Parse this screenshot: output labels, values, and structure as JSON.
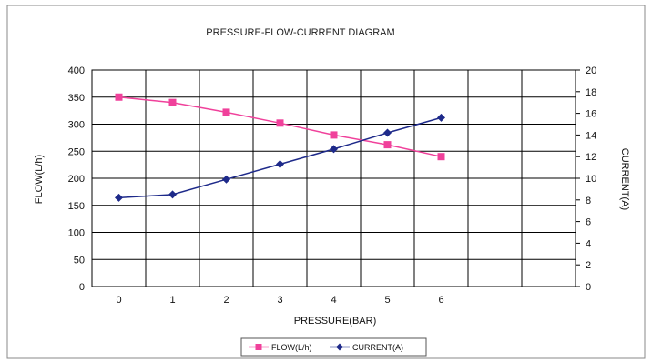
{
  "chart_data": {
    "type": "line",
    "title": "PRESSURE-FLOW-CURRENT DIAGRAM",
    "xlabel": "PRESSURE(BAR)",
    "ylabel_left": "FLOW(L/h)",
    "ylabel_right": "CURRENT(A)",
    "x_categories": [
      "0",
      "1",
      "2",
      "3",
      "4",
      "5",
      "6",
      "",
      ""
    ],
    "x": [
      0,
      1,
      2,
      3,
      4,
      5,
      6
    ],
    "ylim_left": [
      0,
      400
    ],
    "yticks_left": [
      0,
      50,
      100,
      150,
      200,
      250,
      300,
      350,
      400
    ],
    "ylim_right": [
      0,
      20
    ],
    "yticks_right": [
      0,
      2,
      4,
      6,
      8,
      10,
      12,
      14,
      16,
      18,
      20
    ],
    "grid": true,
    "legend_position": "bottom",
    "series": [
      {
        "name": "FLOW(L/h)",
        "axis": "left",
        "color": "#f0419b",
        "marker": "square",
        "values": [
          350,
          340,
          322,
          302,
          280,
          262,
          240
        ]
      },
      {
        "name": "CURRENT(A)",
        "axis": "right",
        "color": "#1e2a8a",
        "marker": "diamond",
        "values": [
          8.2,
          8.5,
          9.9,
          11.3,
          12.7,
          14.2,
          15.6
        ]
      }
    ]
  }
}
